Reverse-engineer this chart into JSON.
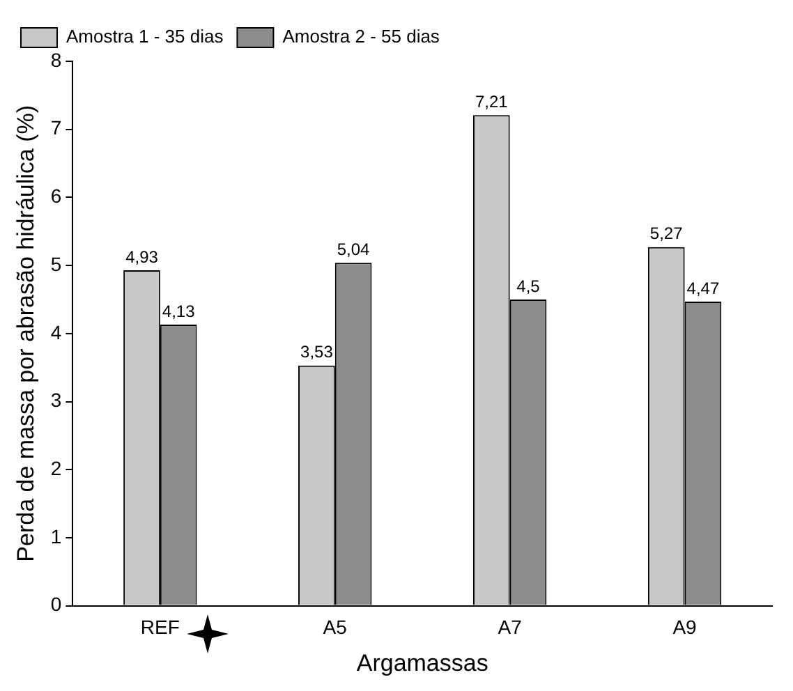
{
  "chart_data": {
    "type": "bar",
    "xlabel": "Argamassas",
    "ylabel": "Perda de massa por abrasão hidráulica (%)",
    "categories": [
      "REF",
      "A5",
      "A7",
      "A9"
    ],
    "series": [
      {
        "name": "Amostra 1 - 35 dias",
        "color": "#c8c8c8",
        "values": [
          4.93,
          3.53,
          7.21,
          5.27
        ],
        "value_labels": [
          "4,93",
          "3,53",
          "7,21",
          "5,27"
        ]
      },
      {
        "name": "Amostra 2 - 55 dias",
        "color": "#8c8c8c",
        "values": [
          4.13,
          5.04,
          4.5,
          4.47
        ],
        "value_labels": [
          "4,13",
          "5,04",
          "4,5",
          "4,47"
        ]
      }
    ],
    "ylim": [
      0,
      8
    ],
    "yticks": [
      0,
      1,
      2,
      3,
      4,
      5,
      6,
      7,
      8
    ],
    "grid": false,
    "legend": "top left"
  }
}
